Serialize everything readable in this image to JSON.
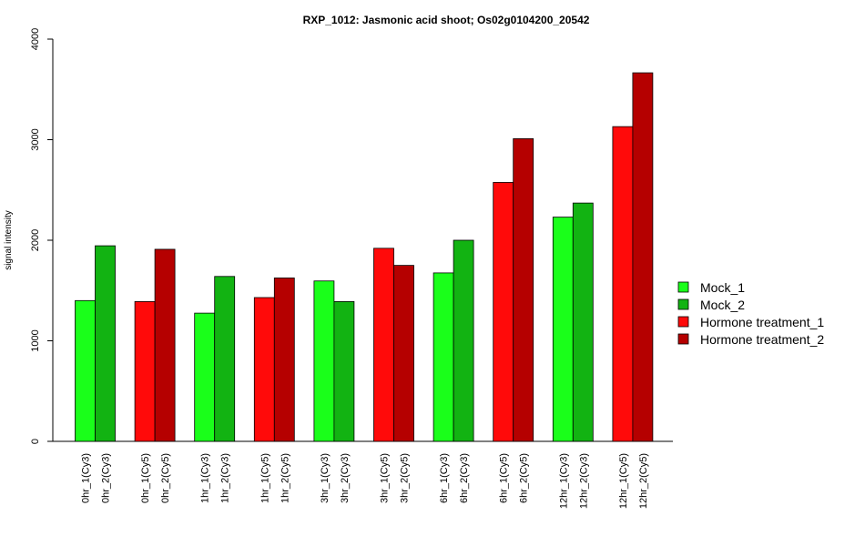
{
  "chart_data": {
    "type": "bar",
    "title": "RXP_1012: Jasmonic acid shoot; Os02g0104200_20542",
    "xlabel": "",
    "ylabel": "signal intensity",
    "ylim": [
      0,
      4000
    ],
    "yticks": [
      0,
      1000,
      2000,
      3000,
      4000
    ],
    "grid": false,
    "legend_position": "right",
    "series_colors": {
      "Mock_1": "#1aff1a",
      "Mock_2": "#12b312",
      "Hormone treatment_1": "#ff0a0a",
      "Hormone treatment_2": "#b50000"
    },
    "legend": [
      {
        "name": "Mock_1",
        "color": "#1aff1a"
      },
      {
        "name": "Mock_2",
        "color": "#12b312"
      },
      {
        "name": "Hormone treatment_1",
        "color": "#ff0a0a"
      },
      {
        "name": "Hormone treatment_2",
        "color": "#b50000"
      }
    ],
    "groups": [
      {
        "bars": [
          {
            "label": "0hr_1(Cy3)",
            "value": 1400,
            "series": "Mock_1"
          },
          {
            "label": "0hr_2(Cy3)",
            "value": 1945,
            "series": "Mock_2"
          }
        ]
      },
      {
        "bars": [
          {
            "label": "0hr_1(Cy5)",
            "value": 1390,
            "series": "Hormone treatment_1"
          },
          {
            "label": "0hr_2(Cy5)",
            "value": 1910,
            "series": "Hormone treatment_2"
          }
        ]
      },
      {
        "bars": [
          {
            "label": "1hr_1(Cy3)",
            "value": 1275,
            "series": "Mock_1"
          },
          {
            "label": "1hr_2(Cy3)",
            "value": 1640,
            "series": "Mock_2"
          }
        ]
      },
      {
        "bars": [
          {
            "label": "1hr_1(Cy5)",
            "value": 1430,
            "series": "Hormone treatment_1"
          },
          {
            "label": "1hr_2(Cy5)",
            "value": 1625,
            "series": "Hormone treatment_2"
          }
        ]
      },
      {
        "bars": [
          {
            "label": "3hr_1(Cy3)",
            "value": 1595,
            "series": "Mock_1"
          },
          {
            "label": "3hr_2(Cy3)",
            "value": 1390,
            "series": "Mock_2"
          }
        ]
      },
      {
        "bars": [
          {
            "label": "3hr_1(Cy5)",
            "value": 1920,
            "series": "Hormone treatment_1"
          },
          {
            "label": "3hr_2(Cy5)",
            "value": 1750,
            "series": "Hormone treatment_2"
          }
        ]
      },
      {
        "bars": [
          {
            "label": "6hr_1(Cy3)",
            "value": 1675,
            "series": "Mock_1"
          },
          {
            "label": "6hr_2(Cy3)",
            "value": 2000,
            "series": "Mock_2"
          }
        ]
      },
      {
        "bars": [
          {
            "label": "6hr_1(Cy5)",
            "value": 2575,
            "series": "Hormone treatment_1"
          },
          {
            "label": "6hr_2(Cy5)",
            "value": 3010,
            "series": "Hormone treatment_2"
          }
        ]
      },
      {
        "bars": [
          {
            "label": "12hr_1(Cy3)",
            "value": 2230,
            "series": "Mock_1"
          },
          {
            "label": "12hr_2(Cy3)",
            "value": 2370,
            "series": "Mock_2"
          }
        ]
      },
      {
        "bars": [
          {
            "label": "12hr_1(Cy5)",
            "value": 3130,
            "series": "Hormone treatment_1"
          },
          {
            "label": "12hr_2(Cy5)",
            "value": 3665,
            "series": "Hormone treatment_2"
          }
        ]
      }
    ]
  }
}
